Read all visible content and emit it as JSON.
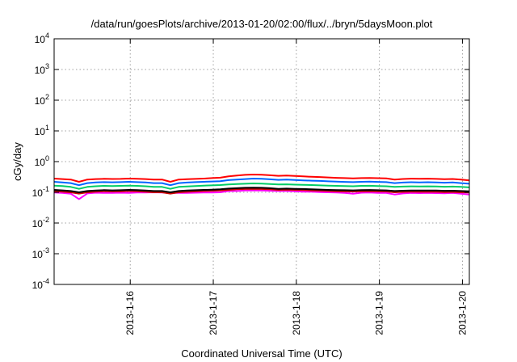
{
  "chart_data": {
    "type": "line",
    "title": "/data/run/goesPlots/archive/2013-01-20/02:00/flux/../bryn/5daysMoon.plot",
    "xlabel": "Coordinated Universal Time (UTC)",
    "ylabel": "cGy/day",
    "x_is_date": true,
    "xlim": [
      "2013-01-15 02:00",
      "2013-01-20 02:00"
    ],
    "ylim": [
      0.0001,
      10000
    ],
    "y_scale": "log",
    "grid": true,
    "x_ticks": [
      "2013-1-16",
      "2013-1-17",
      "2013-1-18",
      "2013-1-19",
      "2013-1-20"
    ],
    "y_ticks": [
      {
        "value": 0.0001,
        "base": "10",
        "exp": "-4"
      },
      {
        "value": 0.001,
        "base": "10",
        "exp": "-3"
      },
      {
        "value": 0.01,
        "base": "10",
        "exp": "-2"
      },
      {
        "value": 0.1,
        "base": "10",
        "exp": "-1"
      },
      {
        "value": 1,
        "base": "10",
        "exp": "0"
      },
      {
        "value": 10,
        "base": "10",
        "exp": "1"
      },
      {
        "value": 100,
        "base": "10",
        "exp": "2"
      },
      {
        "value": 1000,
        "base": "10",
        "exp": "3"
      },
      {
        "value": 10000,
        "base": "10",
        "exp": "4"
      }
    ],
    "series": [
      {
        "color": "#ff00ff",
        "values": [
          0.098,
          0.095,
          0.09,
          0.06,
          0.092,
          0.097,
          0.095,
          0.096,
          0.097,
          0.095,
          0.098,
          0.099,
          0.1,
          0.098,
          0.097,
          0.096,
          0.095,
          0.097,
          0.099,
          0.099,
          0.1,
          0.11,
          0.11,
          0.115,
          0.115,
          0.114,
          0.112,
          0.11,
          0.11,
          0.108,
          0.105,
          0.105,
          0.102,
          0.1,
          0.098,
          0.095,
          0.09,
          0.097,
          0.098,
          0.096,
          0.095,
          0.085,
          0.092,
          0.095,
          0.094,
          0.095,
          0.094,
          0.093,
          0.095,
          0.09,
          0.085
        ]
      },
      {
        "color": "#cc0000",
        "values": [
          0.11,
          0.105,
          0.1,
          0.09,
          0.1,
          0.105,
          0.108,
          0.106,
          0.107,
          0.11,
          0.108,
          0.105,
          0.1,
          0.1,
          0.09,
          0.1,
          0.104,
          0.107,
          0.11,
          0.112,
          0.115,
          0.12,
          0.125,
          0.128,
          0.13,
          0.128,
          0.125,
          0.12,
          0.122,
          0.12,
          0.118,
          0.115,
          0.113,
          0.11,
          0.108,
          0.107,
          0.106,
          0.108,
          0.109,
          0.107,
          0.106,
          0.1,
          0.103,
          0.105,
          0.104,
          0.105,
          0.104,
          0.102,
          0.103,
          0.1,
          0.098
        ]
      },
      {
        "color": "#000000",
        "values": [
          0.12,
          0.116,
          0.11,
          0.1,
          0.11,
          0.115,
          0.118,
          0.116,
          0.117,
          0.12,
          0.118,
          0.115,
          0.11,
          0.11,
          0.1,
          0.11,
          0.114,
          0.117,
          0.12,
          0.122,
          0.125,
          0.132,
          0.136,
          0.14,
          0.142,
          0.14,
          0.136,
          0.13,
          0.132,
          0.13,
          0.128,
          0.125,
          0.123,
          0.12,
          0.118,
          0.117,
          0.116,
          0.118,
          0.119,
          0.117,
          0.116,
          0.11,
          0.113,
          0.115,
          0.114,
          0.115,
          0.114,
          0.112,
          0.113,
          0.11,
          0.108
        ]
      },
      {
        "color": "#00cc66",
        "values": [
          0.165,
          0.16,
          0.15,
          0.13,
          0.15,
          0.158,
          0.162,
          0.16,
          0.162,
          0.165,
          0.162,
          0.158,
          0.15,
          0.15,
          0.13,
          0.15,
          0.156,
          0.16,
          0.165,
          0.168,
          0.172,
          0.18,
          0.186,
          0.19,
          0.195,
          0.192,
          0.186,
          0.18,
          0.182,
          0.178,
          0.175,
          0.172,
          0.168,
          0.165,
          0.162,
          0.16,
          0.158,
          0.162,
          0.163,
          0.16,
          0.158,
          0.15,
          0.154,
          0.157,
          0.155,
          0.157,
          0.155,
          0.152,
          0.154,
          0.15,
          0.145
        ]
      },
      {
        "color": "#0066ff",
        "values": [
          0.22,
          0.21,
          0.2,
          0.17,
          0.2,
          0.21,
          0.215,
          0.212,
          0.214,
          0.22,
          0.215,
          0.21,
          0.2,
          0.2,
          0.17,
          0.2,
          0.208,
          0.214,
          0.22,
          0.225,
          0.23,
          0.25,
          0.26,
          0.27,
          0.28,
          0.275,
          0.265,
          0.255,
          0.26,
          0.252,
          0.245,
          0.24,
          0.235,
          0.228,
          0.222,
          0.218,
          0.215,
          0.22,
          0.222,
          0.218,
          0.215,
          0.2,
          0.208,
          0.213,
          0.21,
          0.213,
          0.21,
          0.206,
          0.209,
          0.2,
          0.19
        ]
      },
      {
        "color": "#ff0000",
        "values": [
          0.28,
          0.27,
          0.26,
          0.22,
          0.26,
          0.27,
          0.275,
          0.272,
          0.274,
          0.28,
          0.275,
          0.27,
          0.26,
          0.26,
          0.22,
          0.26,
          0.268,
          0.274,
          0.28,
          0.29,
          0.3,
          0.33,
          0.35,
          0.37,
          0.38,
          0.375,
          0.36,
          0.345,
          0.35,
          0.34,
          0.33,
          0.32,
          0.315,
          0.305,
          0.295,
          0.29,
          0.285,
          0.29,
          0.292,
          0.288,
          0.285,
          0.26,
          0.272,
          0.278,
          0.275,
          0.278,
          0.274,
          0.268,
          0.272,
          0.26,
          0.245
        ]
      }
    ]
  }
}
